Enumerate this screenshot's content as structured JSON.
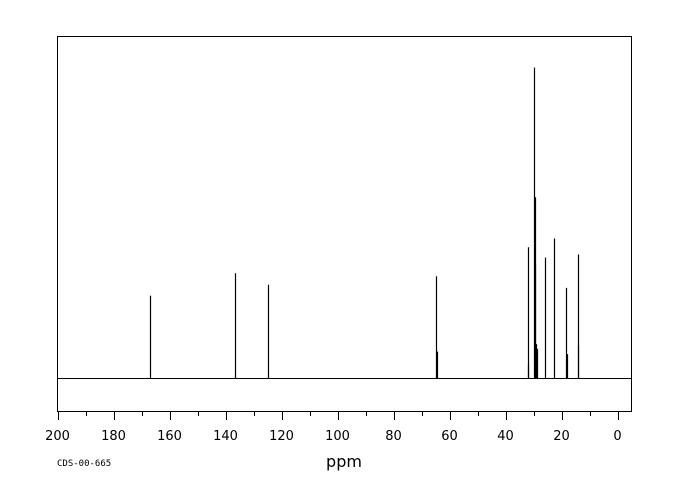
{
  "chart_data": {
    "type": "line",
    "title": "",
    "xlabel": "ppm",
    "ylabel": "",
    "x_reversed": true,
    "xlim": [
      200,
      -5
    ],
    "ylim": [
      0,
      1000
    ],
    "grid": false,
    "legend": "none",
    "xticks": [
      200,
      180,
      160,
      140,
      120,
      100,
      80,
      60,
      40,
      20,
      0
    ],
    "baseline": 0,
    "peaks": [
      {
        "ppm": 167.0,
        "intensity": 265
      },
      {
        "ppm": 136.5,
        "intensity": 337
      },
      {
        "ppm": 125.0,
        "intensity": 300
      },
      {
        "ppm": 64.7,
        "intensity": 327
      },
      {
        "ppm": 64.5,
        "intensity": 86
      },
      {
        "ppm": 32.0,
        "intensity": 420
      },
      {
        "ppm": 31.8,
        "intensity": 45
      },
      {
        "ppm": 29.7,
        "intensity": 995
      },
      {
        "ppm": 29.5,
        "intensity": 580
      },
      {
        "ppm": 29.3,
        "intensity": 365
      },
      {
        "ppm": 29.1,
        "intensity": 110
      },
      {
        "ppm": 28.8,
        "intensity": 95
      },
      {
        "ppm": 26.0,
        "intensity": 387
      },
      {
        "ppm": 22.8,
        "intensity": 448
      },
      {
        "ppm": 18.4,
        "intensity": 290
      },
      {
        "ppm": 18.2,
        "intensity": 78
      },
      {
        "ppm": 14.2,
        "intensity": 397
      },
      {
        "ppm": 14.0,
        "intensity": 105
      }
    ]
  },
  "footer": {
    "code": "CDS-00-665"
  },
  "colors": {
    "line": "#000000",
    "background": "#ffffff"
  }
}
